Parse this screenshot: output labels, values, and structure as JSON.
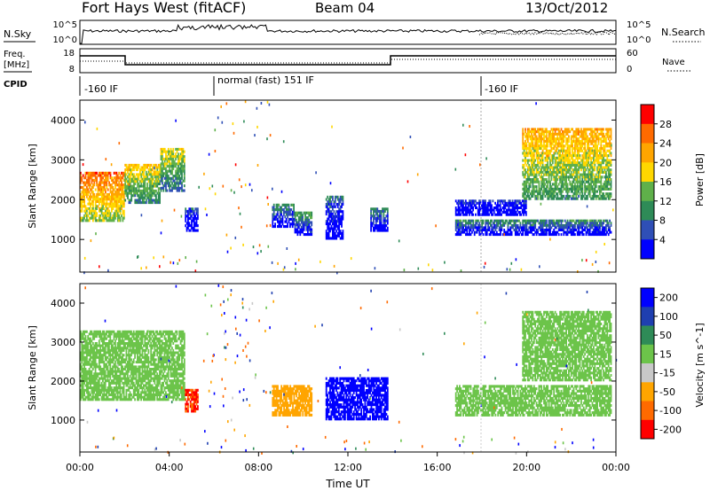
{
  "header": {
    "station": "Fort Hays West (fitACF)",
    "beam": "Beam 04",
    "date": "13/Oct/2012"
  },
  "noise_panel": {
    "left_label": "N.Sky",
    "right_label": "N.Search",
    "left_ticks": [
      "10^5",
      "10^0"
    ],
    "right_ticks": [
      "10^5",
      "10^0"
    ]
  },
  "freq_panel": {
    "left_label": "Freq.",
    "left_unit": "[MHz]",
    "right_label": "Nave",
    "left_ticks": [
      "18",
      "8"
    ],
    "right_ticks": [
      "60",
      "0"
    ]
  },
  "cpid": {
    "label": "CPID",
    "segments": [
      {
        "start": 0.0,
        "end": 6.0,
        "text": "-160 IF"
      },
      {
        "start": 6.0,
        "end": 18.0,
        "text": "normal (fast) 151 IF"
      },
      {
        "start": 18.0,
        "end": 24.0,
        "text": "-160 IF"
      }
    ]
  },
  "xaxis": {
    "label": "Time UT",
    "ticks": [
      "00:00",
      "04:00",
      "08:00",
      "12:00",
      "16:00",
      "20:00",
      "00:00"
    ]
  },
  "colors": {
    "power": [
      "#0000ff",
      "#2f4fb6",
      "#2e8b57",
      "#5fb04a",
      "#ffd700",
      "#ffa500",
      "#ff6a00",
      "#ff0000"
    ],
    "velocity": [
      "#0000ff",
      "#1f3fb0",
      "#2e8b57",
      "#6cc44a",
      "#c8c8c8",
      "#ffa500",
      "#ff6a00",
      "#ff0000"
    ]
  },
  "chart_data": [
    {
      "type": "heatmap",
      "name": "power",
      "ylabel": "Slant Range [km]",
      "ylim": [
        180,
        4500
      ],
      "yticks": [
        "1000",
        "2000",
        "3000",
        "4000"
      ],
      "colorbar_label": "Power [dB]",
      "colorbar_ticks": [
        "4",
        "8",
        "12",
        "16",
        "20",
        "24",
        "28"
      ],
      "colorbar_range": [
        0,
        32
      ],
      "regions": [
        {
          "t0": 0.0,
          "t1": 2.0,
          "r0": 1450,
          "r1": 2700,
          "value": 26
        },
        {
          "t0": 2.0,
          "t1": 3.6,
          "r0": 1900,
          "r1": 2900,
          "value": 20
        },
        {
          "t0": 3.6,
          "t1": 4.7,
          "r0": 2200,
          "r1": 3300,
          "value": 18
        },
        {
          "t0": 4.7,
          "t1": 5.3,
          "r0": 1200,
          "r1": 1800,
          "value": 6
        },
        {
          "t0": 8.6,
          "t1": 9.6,
          "r0": 1300,
          "r1": 1900,
          "value": 10
        },
        {
          "t0": 9.6,
          "t1": 10.4,
          "r0": 1100,
          "r1": 1700,
          "value": 12
        },
        {
          "t0": 11.0,
          "t1": 11.8,
          "r0": 1000,
          "r1": 2100,
          "value": 8
        },
        {
          "t0": 13.0,
          "t1": 13.8,
          "r0": 1200,
          "r1": 1800,
          "value": 10
        },
        {
          "t0": 16.8,
          "t1": 23.8,
          "r0": 1100,
          "r1": 1500,
          "value": 10
        },
        {
          "t0": 16.8,
          "t1": 20.0,
          "r0": 1600,
          "r1": 2000,
          "value": 5
        },
        {
          "t0": 19.8,
          "t1": 23.8,
          "r0": 2000,
          "r1": 3800,
          "value": 22
        }
      ]
    },
    {
      "type": "heatmap",
      "name": "velocity",
      "ylabel": "Slant Range [km]",
      "ylim": [
        180,
        4500
      ],
      "yticks": [
        "1000",
        "2000",
        "3000",
        "4000"
      ],
      "colorbar_label": "Velocity [m s^-1]",
      "colorbar_ticks": [
        "200",
        "100",
        "50",
        "15",
        "-15",
        "-50",
        "-100",
        "-200"
      ],
      "regions": [
        {
          "t0": 0.0,
          "t1": 4.7,
          "r0": 1500,
          "r1": 3300,
          "value": 0
        },
        {
          "t0": 4.7,
          "t1": 5.3,
          "r0": 1200,
          "r1": 1800,
          "value": -200
        },
        {
          "t0": 8.6,
          "t1": 10.4,
          "r0": 1100,
          "r1": 1900,
          "value": -80
        },
        {
          "t0": 11.0,
          "t1": 13.8,
          "r0": 1000,
          "r1": 2100,
          "value": 200
        },
        {
          "t0": 16.8,
          "t1": 23.8,
          "r0": 1100,
          "r1": 1900,
          "value": 0
        },
        {
          "t0": 19.8,
          "t1": 23.8,
          "r0": 2000,
          "r1": 3800,
          "value": 0
        }
      ]
    }
  ]
}
